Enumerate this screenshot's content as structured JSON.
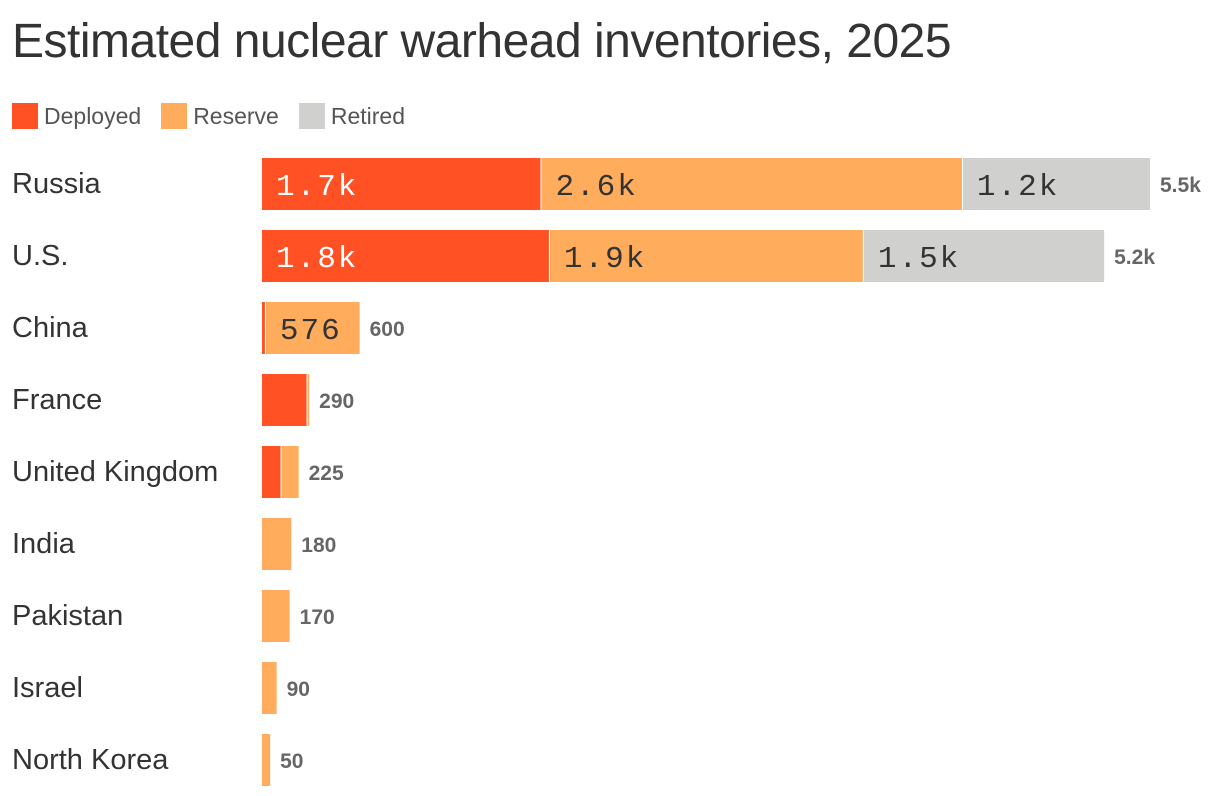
{
  "chart_data": {
    "type": "bar",
    "orientation": "horizontal",
    "stacked": true,
    "title": "Estimated nuclear warhead inventories, 2025",
    "categories": [
      "Russia",
      "U.S.",
      "China",
      "France",
      "United Kingdom",
      "India",
      "Pakistan",
      "Israel",
      "North Korea"
    ],
    "series": [
      {
        "name": "Deployed",
        "color": "#ff5124",
        "values": [
          1718,
          1770,
          24,
          280,
          120,
          0,
          0,
          0,
          0
        ],
        "labels": [
          "1.7k",
          "1.8k",
          "",
          "",
          "",
          "",
          "",
          "",
          ""
        ]
      },
      {
        "name": "Reserve",
        "color": "#ffad5c",
        "values": [
          2591,
          1930,
          576,
          10,
          105,
          180,
          170,
          90,
          50
        ],
        "labels": [
          "2.6k",
          "1.9k",
          "576",
          "",
          "",
          "",
          "",
          "",
          ""
        ]
      },
      {
        "name": "Retired",
        "color": "#d0d1cf",
        "values": [
          1150,
          1477,
          0,
          0,
          0,
          0,
          0,
          0,
          0
        ],
        "labels": [
          "1.2k",
          "1.5k",
          "",
          "",
          "",
          "",
          "",
          "",
          ""
        ]
      }
    ],
    "totals": [
      "5.5k",
      "5.2k",
      "600",
      "290",
      "225",
      "180",
      "170",
      "90",
      "50"
    ],
    "legend_position": "top-left",
    "grid": false
  }
}
